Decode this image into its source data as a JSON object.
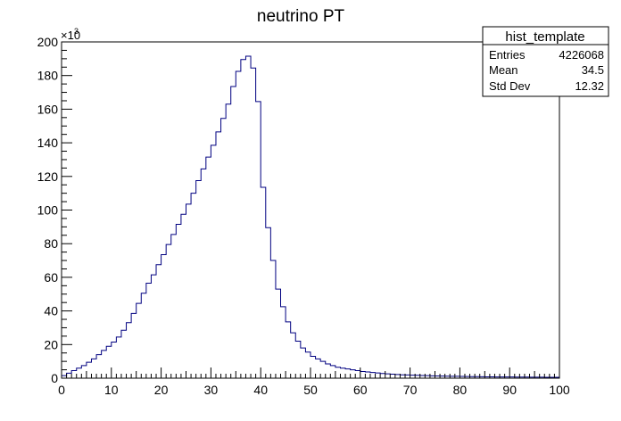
{
  "chart_data": {
    "type": "bar",
    "title": "neutrino PT",
    "xlim": [
      0,
      100
    ],
    "ylim": [
      0,
      200000
    ],
    "x_ticks": [
      "0",
      "10",
      "20",
      "30",
      "40",
      "50",
      "60",
      "70",
      "80",
      "90",
      "100"
    ],
    "y_ticks": [
      "0",
      "20",
      "40",
      "60",
      "80",
      "100",
      "120",
      "140",
      "160",
      "180",
      "200"
    ],
    "y_multiplier": "×10",
    "y_multiplier_exp": "3",
    "bin_width": 1,
    "color": "#000080",
    "values": [
      1500,
      3000,
      4500,
      6000,
      7500,
      9500,
      11500,
      14000,
      16500,
      19000,
      21500,
      24500,
      28500,
      33000,
      38500,
      44500,
      50500,
      56500,
      61500,
      67500,
      73500,
      79500,
      85500,
      91500,
      97500,
      103500,
      110000,
      117500,
      124500,
      131500,
      138500,
      146500,
      154500,
      163000,
      173500,
      182500,
      189500,
      191500,
      184500,
      164500,
      113500,
      89500,
      70000,
      53000,
      42500,
      33500,
      27000,
      22000,
      18000,
      15500,
      13000,
      11500,
      10000,
      8500,
      7500,
      6500,
      6000,
      5500,
      5000,
      4500,
      4000,
      3700,
      3400,
      3100,
      2800,
      2600,
      2400,
      2200,
      2000,
      1900,
      1800,
      1700,
      1600,
      1500,
      1400,
      1300,
      1250,
      1200,
      1150,
      1100,
      1050,
      1000,
      950,
      900,
      850,
      800,
      780,
      760,
      740,
      720,
      700,
      680,
      660,
      640,
      620,
      600,
      580,
      560,
      540,
      520
    ]
  },
  "stats": {
    "title": "hist_template",
    "rows": [
      {
        "label": "Entries",
        "value": "4226068"
      },
      {
        "label": "Mean",
        "value": "34.5"
      },
      {
        "label": "Std Dev",
        "value": "12.32"
      }
    ]
  }
}
